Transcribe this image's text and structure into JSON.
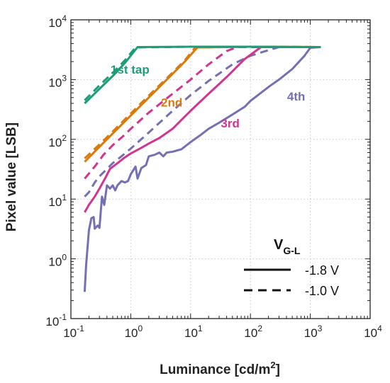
{
  "chart_data": {
    "type": "line",
    "xscale": "log",
    "yscale": "log",
    "xlim": [
      0.1,
      10000
    ],
    "ylim": [
      0.1,
      10000
    ],
    "grid": "dotted",
    "xticks": [
      {
        "base": "10",
        "exp": "-1"
      },
      {
        "base": "10",
        "exp": "0"
      },
      {
        "base": "10",
        "exp": "1"
      },
      {
        "base": "10",
        "exp": "2"
      },
      {
        "base": "10",
        "exp": "3"
      },
      {
        "base": "10",
        "exp": "4"
      }
    ],
    "yticks": [
      {
        "base": "10",
        "exp": "-1"
      },
      {
        "base": "10",
        "exp": "0"
      },
      {
        "base": "10",
        "exp": "1"
      },
      {
        "base": "10",
        "exp": "2"
      },
      {
        "base": "10",
        "exp": "3"
      },
      {
        "base": "10",
        "exp": "4"
      }
    ],
    "xlabel": {
      "pre": "Luminance [cd/m",
      "sup": "2",
      "post": "]"
    },
    "ylabel": "Pixel value [LSB]",
    "legend": {
      "title_main": "V",
      "title_sub": "G-L",
      "placement": "lower-right",
      "entries": [
        {
          "style": "solid",
          "label": "-1.8 V"
        },
        {
          "style": "dashed",
          "label": "-1.0 V"
        }
      ]
    },
    "series": [
      {
        "label": "1st tap",
        "color": "#1b9e77",
        "label_pos": [
          0.46,
          3.1
        ],
        "solid": [
          [
            0.17,
            400
          ],
          [
            0.3,
            700
          ],
          [
            0.5,
            1150
          ],
          [
            0.8,
            1900
          ],
          [
            1.3,
            3500
          ],
          [
            10,
            3550
          ],
          [
            100,
            3550
          ],
          [
            1500,
            3500
          ]
        ],
        "dashed": [
          [
            0.17,
            450
          ],
          [
            0.3,
            800
          ],
          [
            0.5,
            1300
          ],
          [
            0.8,
            2100
          ],
          [
            1.2,
            3450
          ],
          [
            10,
            3550
          ],
          [
            100,
            3550
          ],
          [
            1500,
            3500
          ]
        ]
      },
      {
        "label": "2nd",
        "color": "#d97a0b",
        "label_pos": [
          3.2,
          2.55
        ],
        "solid": [
          [
            0.17,
            42
          ],
          [
            0.3,
            75
          ],
          [
            0.5,
            125
          ],
          [
            1,
            250
          ],
          [
            2,
            500
          ],
          [
            4,
            1000
          ],
          [
            8,
            2000
          ],
          [
            13,
            3450
          ],
          [
            100,
            3550
          ],
          [
            1500,
            3500
          ]
        ],
        "dashed": [
          [
            0.17,
            48
          ],
          [
            0.3,
            82
          ],
          [
            0.5,
            135
          ],
          [
            1,
            270
          ],
          [
            2,
            540
          ],
          [
            4,
            1050
          ],
          [
            8,
            2100
          ],
          [
            12,
            3450
          ],
          [
            100,
            3550
          ],
          [
            1500,
            3500
          ]
        ]
      },
      {
        "label": "3rd",
        "color": "#d1358f",
        "label_pos": [
          32,
          2.2
        ],
        "solid": [
          [
            0.17,
            6
          ],
          [
            0.2,
            8
          ],
          [
            0.25,
            11
          ],
          [
            0.3,
            15
          ],
          [
            0.38,
            23
          ],
          [
            0.45,
            32
          ],
          [
            0.6,
            40
          ],
          [
            0.8,
            50
          ],
          [
            1,
            58
          ],
          [
            1.5,
            72
          ],
          [
            2,
            85
          ],
          [
            3,
            105
          ],
          [
            5,
            150
          ],
          [
            10,
            300
          ],
          [
            20,
            580
          ],
          [
            40,
            1100
          ],
          [
            80,
            2200
          ],
          [
            150,
            3500
          ],
          [
            1500,
            3500
          ]
        ],
        "dashed": [
          [
            0.17,
            22
          ],
          [
            0.25,
            35
          ],
          [
            0.35,
            55
          ],
          [
            0.5,
            80
          ],
          [
            0.8,
            120
          ],
          [
            1,
            150
          ],
          [
            2,
            280
          ],
          [
            5,
            580
          ],
          [
            10,
            1000
          ],
          [
            20,
            1800
          ],
          [
            40,
            3000
          ],
          [
            60,
            3500
          ],
          [
            1500,
            3500
          ]
        ]
      },
      {
        "label": "4th",
        "color": "#7570b3",
        "label_pos": [
          410,
          2.65
        ],
        "solid": [
          [
            0.17,
            0.28
          ],
          [
            0.18,
            0.8
          ],
          [
            0.2,
            3
          ],
          [
            0.22,
            4.8
          ],
          [
            0.24,
            5
          ],
          [
            0.25,
            3.2
          ],
          [
            0.28,
            3.6
          ],
          [
            0.3,
            3.3
          ],
          [
            0.33,
            11
          ],
          [
            0.36,
            8
          ],
          [
            0.4,
            17
          ],
          [
            0.45,
            15
          ],
          [
            0.5,
            17
          ],
          [
            0.55,
            14
          ],
          [
            0.6,
            17
          ],
          [
            0.7,
            20
          ],
          [
            0.8,
            19
          ],
          [
            0.9,
            20
          ],
          [
            1,
            26
          ],
          [
            1.2,
            35
          ],
          [
            1.3,
            22
          ],
          [
            1.5,
            33
          ],
          [
            1.8,
            37
          ],
          [
            2,
            52
          ],
          [
            2.5,
            55
          ],
          [
            3,
            60
          ],
          [
            3.5,
            52
          ],
          [
            4,
            60
          ],
          [
            5,
            62
          ],
          [
            7,
            68
          ],
          [
            10,
            90
          ],
          [
            15,
            120
          ],
          [
            20,
            150
          ],
          [
            30,
            190
          ],
          [
            50,
            260
          ],
          [
            80,
            350
          ],
          [
            100,
            440
          ],
          [
            150,
            600
          ],
          [
            200,
            750
          ],
          [
            300,
            1000
          ],
          [
            500,
            1500
          ],
          [
            800,
            2500
          ],
          [
            1000,
            3400
          ],
          [
            1500,
            3500
          ]
        ],
        "dashed": [
          [
            0.17,
            11
          ],
          [
            0.2,
            13
          ],
          [
            0.25,
            19
          ],
          [
            0.3,
            24
          ],
          [
            0.4,
            32
          ],
          [
            0.5,
            40
          ],
          [
            0.7,
            52
          ],
          [
            1,
            70
          ],
          [
            2,
            130
          ],
          [
            5,
            300
          ],
          [
            10,
            550
          ],
          [
            20,
            950
          ],
          [
            50,
            1800
          ],
          [
            100,
            2500
          ],
          [
            200,
            3100
          ],
          [
            300,
            3500
          ],
          [
            1500,
            3500
          ]
        ]
      }
    ]
  }
}
